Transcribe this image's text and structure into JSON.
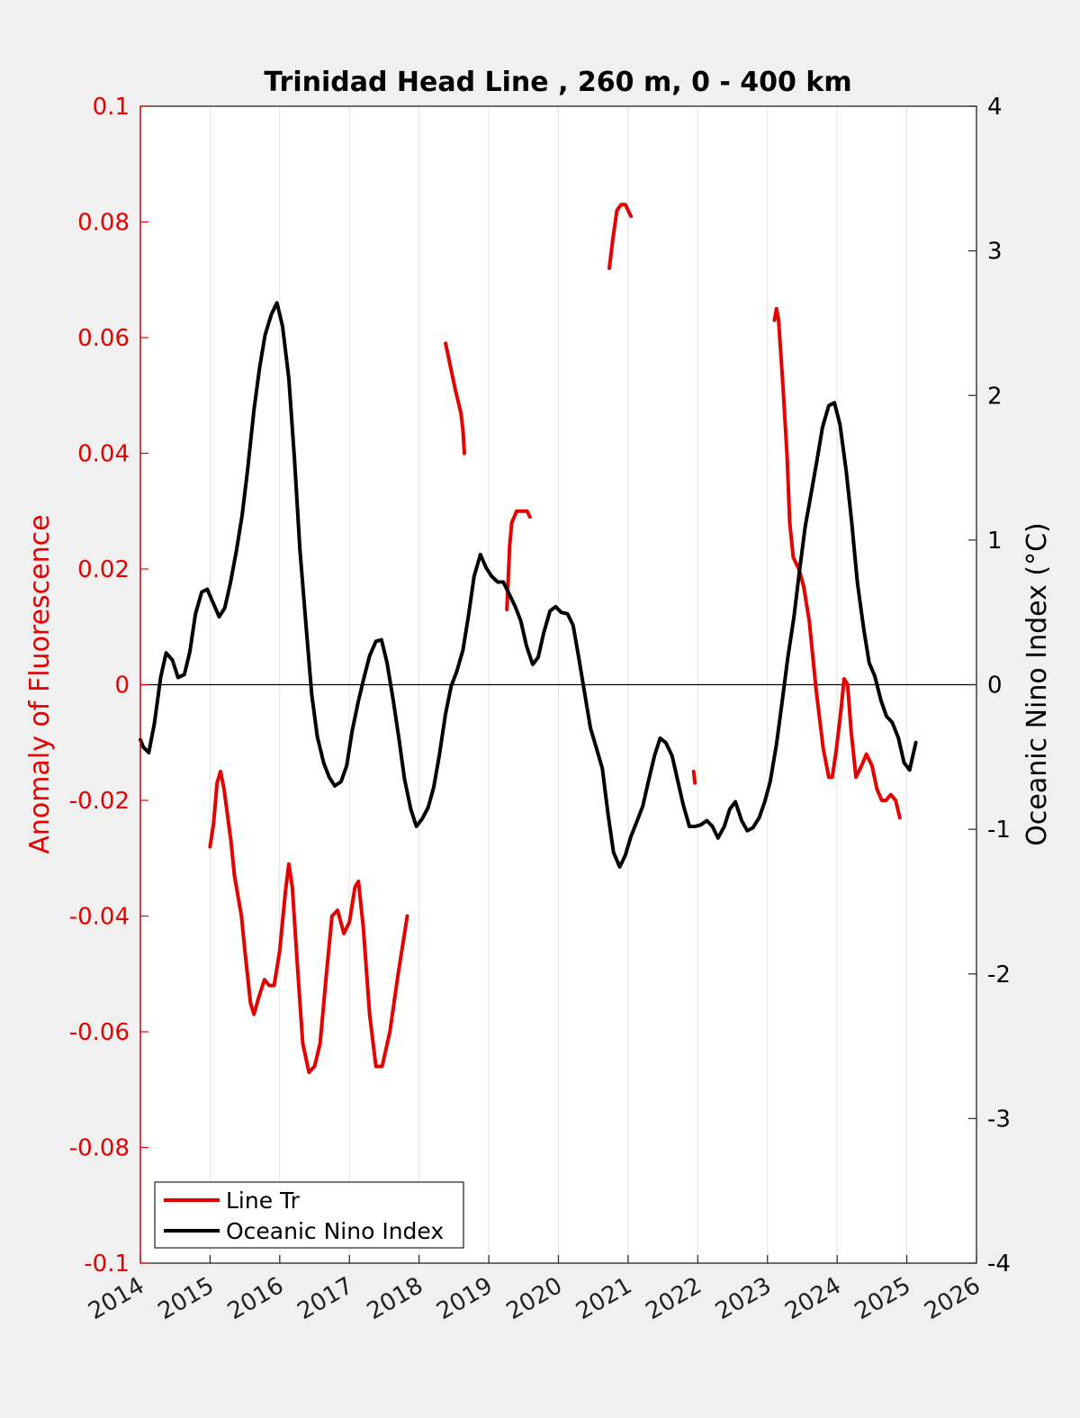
{
  "chart_data": {
    "type": "line",
    "title": "Trinidad Head Line , 260 m, 0 - 400 km",
    "xlabel": "",
    "ylabel_left": "Anomaly of Fluorescence",
    "ylabel_right": "Oceanic Nino Index (°C)",
    "xlim": [
      2014,
      2026
    ],
    "ylim_left": [
      -0.1,
      0.1
    ],
    "ylim_right": [
      -4,
      4
    ],
    "x_ticks": [
      2014,
      2015,
      2016,
      2017,
      2018,
      2019,
      2020,
      2021,
      2022,
      2023,
      2024,
      2025,
      2026
    ],
    "x_tick_labels": [
      "2014",
      "2015",
      "2016",
      "2017",
      "2018",
      "2019",
      "2020",
      "2021",
      "2022",
      "2023",
      "2024",
      "2025",
      "2026"
    ],
    "y_left_ticks": [
      -0.1,
      -0.08,
      -0.06,
      -0.04,
      -0.02,
      0,
      0.02,
      0.04,
      0.06,
      0.08,
      0.1
    ],
    "y_left_tick_labels": [
      "-0.1",
      "-0.08",
      "-0.06",
      "-0.04",
      "-0.02",
      "0",
      "0.02",
      "0.04",
      "0.06",
      "0.08",
      "0.1"
    ],
    "y_right_ticks": [
      -4,
      -3,
      -2,
      -1,
      0,
      1,
      2,
      3,
      4
    ],
    "y_right_tick_labels": [
      "-4",
      "-3",
      "-2",
      "-1",
      "0",
      "1",
      "2",
      "3",
      "4"
    ],
    "grid": "vertical",
    "zero_line": true,
    "legend_position": "bottom-left",
    "series": [
      {
        "name": "Line Tr",
        "axis": "left",
        "color": "#e60000",
        "segments": [
          [
            [
              2015.0,
              -0.028
            ],
            [
              2015.05,
              -0.024
            ],
            [
              2015.1,
              -0.017
            ],
            [
              2015.15,
              -0.015
            ],
            [
              2015.2,
              -0.018
            ],
            [
              2015.3,
              -0.027
            ],
            [
              2015.35,
              -0.033
            ],
            [
              2015.45,
              -0.04
            ],
            [
              2015.5,
              -0.046
            ],
            [
              2015.58,
              -0.055
            ],
            [
              2015.63,
              -0.057
            ],
            [
              2015.7,
              -0.054
            ],
            [
              2015.78,
              -0.051
            ],
            [
              2015.85,
              -0.052
            ],
            [
              2015.92,
              -0.052
            ],
            [
              2016.0,
              -0.046
            ],
            [
              2016.08,
              -0.036
            ],
            [
              2016.13,
              -0.031
            ],
            [
              2016.18,
              -0.035
            ],
            [
              2016.25,
              -0.048
            ],
            [
              2016.33,
              -0.062
            ],
            [
              2016.42,
              -0.067
            ],
            [
              2016.5,
              -0.066
            ],
            [
              2016.58,
              -0.062
            ],
            [
              2016.67,
              -0.05
            ],
            [
              2016.75,
              -0.04
            ],
            [
              2016.83,
              -0.039
            ],
            [
              2016.92,
              -0.043
            ],
            [
              2017.0,
              -0.041
            ],
            [
              2017.08,
              -0.035
            ],
            [
              2017.13,
              -0.034
            ],
            [
              2017.2,
              -0.042
            ],
            [
              2017.29,
              -0.057
            ],
            [
              2017.38,
              -0.066
            ],
            [
              2017.47,
              -0.066
            ],
            [
              2017.58,
              -0.06
            ],
            [
              2017.7,
              -0.05
            ],
            [
              2017.83,
              -0.04
            ]
          ],
          [
            [
              2018.38,
              0.059
            ],
            [
              2018.45,
              0.055
            ],
            [
              2018.52,
              0.051
            ],
            [
              2018.6,
              0.047
            ],
            [
              2018.63,
              0.044
            ],
            [
              2018.65,
              0.04
            ]
          ],
          [
            [
              2019.26,
              0.013
            ],
            [
              2019.3,
              0.024
            ],
            [
              2019.33,
              0.028
            ],
            [
              2019.4,
              0.03
            ],
            [
              2019.5,
              0.03
            ],
            [
              2019.55,
              0.03
            ],
            [
              2019.59,
              0.029
            ]
          ],
          [
            [
              2020.73,
              0.072
            ],
            [
              2020.78,
              0.077
            ],
            [
              2020.84,
              0.082
            ],
            [
              2020.9,
              0.083
            ],
            [
              2020.96,
              0.083
            ],
            [
              2021.0,
              0.082
            ],
            [
              2021.04,
              0.081
            ]
          ],
          [
            [
              2021.94,
              -0.015
            ],
            [
              2021.96,
              -0.017
            ]
          ],
          [
            [
              2023.1,
              0.063
            ],
            [
              2023.13,
              0.065
            ],
            [
              2023.16,
              0.063
            ],
            [
              2023.22,
              0.052
            ],
            [
              2023.28,
              0.04
            ],
            [
              2023.32,
              0.028
            ],
            [
              2023.37,
              0.022
            ],
            [
              2023.45,
              0.02
            ],
            [
              2023.52,
              0.017
            ],
            [
              2023.6,
              0.011
            ],
            [
              2023.7,
              -0.001
            ],
            [
              2023.8,
              -0.011
            ],
            [
              2023.88,
              -0.016
            ],
            [
              2023.93,
              -0.016
            ],
            [
              2023.98,
              -0.012
            ],
            [
              2024.05,
              -0.005
            ],
            [
              2024.1,
              0.001
            ],
            [
              2024.15,
              0.0
            ],
            [
              2024.2,
              -0.008
            ],
            [
              2024.27,
              -0.016
            ],
            [
              2024.35,
              -0.014
            ],
            [
              2024.42,
              -0.012
            ],
            [
              2024.5,
              -0.014
            ],
            [
              2024.57,
              -0.018
            ],
            [
              2024.64,
              -0.02
            ],
            [
              2024.7,
              -0.02
            ],
            [
              2024.77,
              -0.019
            ],
            [
              2024.84,
              -0.02
            ],
            [
              2024.9,
              -0.023
            ]
          ]
        ]
      },
      {
        "name": "Oceanic Nino Index",
        "axis": "right",
        "color": "#000000",
        "points": [
          [
            2014.0,
            -0.38
          ],
          [
            2014.04,
            -0.43
          ],
          [
            2014.12,
            -0.47
          ],
          [
            2014.2,
            -0.27
          ],
          [
            2014.29,
            0.05
          ],
          [
            2014.37,
            0.22
          ],
          [
            2014.46,
            0.17
          ],
          [
            2014.54,
            0.05
          ],
          [
            2014.63,
            0.07
          ],
          [
            2014.71,
            0.23
          ],
          [
            2014.79,
            0.49
          ],
          [
            2014.88,
            0.64
          ],
          [
            2014.96,
            0.66
          ],
          [
            2015.04,
            0.57
          ],
          [
            2015.13,
            0.47
          ],
          [
            2015.21,
            0.53
          ],
          [
            2015.29,
            0.7
          ],
          [
            2015.38,
            0.93
          ],
          [
            2015.46,
            1.17
          ],
          [
            2015.54,
            1.49
          ],
          [
            2015.63,
            1.9
          ],
          [
            2015.71,
            2.19
          ],
          [
            2015.79,
            2.42
          ],
          [
            2015.88,
            2.56
          ],
          [
            2015.96,
            2.64
          ],
          [
            2016.04,
            2.48
          ],
          [
            2016.13,
            2.12
          ],
          [
            2016.21,
            1.57
          ],
          [
            2016.29,
            0.93
          ],
          [
            2016.38,
            0.39
          ],
          [
            2016.46,
            -0.07
          ],
          [
            2016.54,
            -0.36
          ],
          [
            2016.63,
            -0.54
          ],
          [
            2016.71,
            -0.64
          ],
          [
            2016.79,
            -0.7
          ],
          [
            2016.88,
            -0.67
          ],
          [
            2016.96,
            -0.56
          ],
          [
            2017.04,
            -0.32
          ],
          [
            2017.13,
            -0.11
          ],
          [
            2017.21,
            0.05
          ],
          [
            2017.29,
            0.2
          ],
          [
            2017.38,
            0.3
          ],
          [
            2017.46,
            0.31
          ],
          [
            2017.54,
            0.15
          ],
          [
            2017.63,
            -0.11
          ],
          [
            2017.71,
            -0.37
          ],
          [
            2017.79,
            -0.65
          ],
          [
            2017.88,
            -0.86
          ],
          [
            2017.96,
            -0.98
          ],
          [
            2018.04,
            -0.93
          ],
          [
            2018.13,
            -0.85
          ],
          [
            2018.21,
            -0.71
          ],
          [
            2018.29,
            -0.49
          ],
          [
            2018.38,
            -0.2
          ],
          [
            2018.46,
            -0.01
          ],
          [
            2018.54,
            0.09
          ],
          [
            2018.63,
            0.24
          ],
          [
            2018.71,
            0.48
          ],
          [
            2018.79,
            0.75
          ],
          [
            2018.88,
            0.9
          ],
          [
            2018.96,
            0.81
          ],
          [
            2019.04,
            0.75
          ],
          [
            2019.13,
            0.71
          ],
          [
            2019.21,
            0.71
          ],
          [
            2019.29,
            0.63
          ],
          [
            2019.38,
            0.54
          ],
          [
            2019.46,
            0.44
          ],
          [
            2019.54,
            0.27
          ],
          [
            2019.63,
            0.14
          ],
          [
            2019.71,
            0.19
          ],
          [
            2019.79,
            0.36
          ],
          [
            2019.88,
            0.51
          ],
          [
            2019.96,
            0.54
          ],
          [
            2020.04,
            0.5
          ],
          [
            2020.13,
            0.49
          ],
          [
            2020.21,
            0.41
          ],
          [
            2020.29,
            0.19
          ],
          [
            2020.38,
            -0.07
          ],
          [
            2020.46,
            -0.3
          ],
          [
            2020.54,
            -0.43
          ],
          [
            2020.63,
            -0.58
          ],
          [
            2020.71,
            -0.89
          ],
          [
            2020.79,
            -1.16
          ],
          [
            2020.88,
            -1.26
          ],
          [
            2020.96,
            -1.18
          ],
          [
            2021.04,
            -1.05
          ],
          [
            2021.13,
            -0.94
          ],
          [
            2021.21,
            -0.84
          ],
          [
            2021.29,
            -0.67
          ],
          [
            2021.38,
            -0.49
          ],
          [
            2021.46,
            -0.37
          ],
          [
            2021.54,
            -0.4
          ],
          [
            2021.63,
            -0.49
          ],
          [
            2021.71,
            -0.66
          ],
          [
            2021.79,
            -0.83
          ],
          [
            2021.88,
            -0.98
          ],
          [
            2021.96,
            -0.98
          ],
          [
            2022.04,
            -0.97
          ],
          [
            2022.13,
            -0.94
          ],
          [
            2022.21,
            -0.98
          ],
          [
            2022.29,
            -1.06
          ],
          [
            2022.38,
            -0.98
          ],
          [
            2022.46,
            -0.86
          ],
          [
            2022.54,
            -0.81
          ],
          [
            2022.63,
            -0.94
          ],
          [
            2022.71,
            -1.01
          ],
          [
            2022.79,
            -0.99
          ],
          [
            2022.88,
            -0.92
          ],
          [
            2022.96,
            -0.81
          ],
          [
            2023.04,
            -0.67
          ],
          [
            2023.13,
            -0.41
          ],
          [
            2023.21,
            -0.12
          ],
          [
            2023.29,
            0.18
          ],
          [
            2023.38,
            0.47
          ],
          [
            2023.46,
            0.79
          ],
          [
            2023.54,
            1.09
          ],
          [
            2023.63,
            1.33
          ],
          [
            2023.71,
            1.55
          ],
          [
            2023.79,
            1.78
          ],
          [
            2023.88,
            1.93
          ],
          [
            2023.96,
            1.95
          ],
          [
            2024.04,
            1.8
          ],
          [
            2024.13,
            1.48
          ],
          [
            2024.21,
            1.12
          ],
          [
            2024.29,
            0.71
          ],
          [
            2024.38,
            0.39
          ],
          [
            2024.46,
            0.15
          ],
          [
            2024.54,
            0.06
          ],
          [
            2024.63,
            -0.11
          ],
          [
            2024.71,
            -0.22
          ],
          [
            2024.79,
            -0.26
          ],
          [
            2024.88,
            -0.37
          ],
          [
            2024.96,
            -0.54
          ],
          [
            2025.04,
            -0.59
          ],
          [
            2025.13,
            -0.4
          ]
        ]
      }
    ]
  }
}
